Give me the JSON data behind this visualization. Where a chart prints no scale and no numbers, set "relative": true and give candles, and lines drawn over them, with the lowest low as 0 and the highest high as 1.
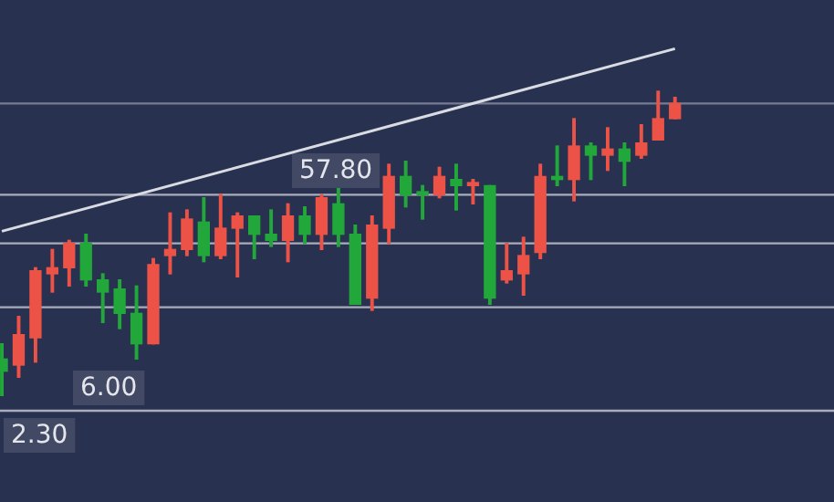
{
  "chart_data": {
    "type": "candlestick",
    "relative": true,
    "categories": [
      null,
      null,
      null,
      null,
      null,
      null,
      null,
      null,
      null,
      null,
      null,
      null,
      null,
      null,
      null,
      null,
      null,
      null,
      null,
      null,
      null,
      null,
      null,
      null,
      null,
      null,
      null,
      null,
      null,
      null,
      null,
      null,
      null,
      null,
      null,
      null,
      null,
      null,
      null,
      null,
      null
    ],
    "ohlc": [
      [
        0.12,
        0.17,
        0,
        0.08
      ],
      [
        0.1,
        0.26,
        0.06,
        0.2
      ],
      [
        0.19,
        0.42,
        0.11,
        0.41
      ],
      [
        0.4,
        0.48,
        0.34,
        0.42
      ],
      [
        0.42,
        0.51,
        0.36,
        0.5
      ],
      [
        0.5,
        0.53,
        0.36,
        0.38
      ],
      [
        0.38,
        0.4,
        0.24,
        0.34
      ],
      [
        0.35,
        0.38,
        0.22,
        0.27
      ],
      [
        0.27,
        0.36,
        0.12,
        0.17
      ],
      [
        0.17,
        0.45,
        0.17,
        0.43
      ],
      [
        0.46,
        0.6,
        0.4,
        0.48
      ],
      [
        0.48,
        0.61,
        0.46,
        0.58
      ],
      [
        0.57,
        0.65,
        0.44,
        0.46
      ],
      [
        0.46,
        0.66,
        0.45,
        0.55
      ],
      [
        0.55,
        0.6,
        0.39,
        0.59
      ],
      [
        0.59,
        0.59,
        0.45,
        0.53
      ],
      [
        0.53,
        0.61,
        0.49,
        0.51
      ],
      [
        0.51,
        0.63,
        0.44,
        0.59
      ],
      [
        0.59,
        0.62,
        0.5,
        0.53
      ],
      [
        0.53,
        0.66,
        0.48,
        0.65
      ],
      [
        0.63,
        0.68,
        0.49,
        0.53
      ],
      [
        0.53,
        0.56,
        0.3,
        0.3
      ],
      [
        0.32,
        0.59,
        0.28,
        0.56
      ],
      [
        0.55,
        0.76,
        0.5,
        0.72
      ],
      [
        0.72,
        0.77,
        0.62,
        0.66
      ],
      [
        0.67,
        0.69,
        0.58,
        0.66
      ],
      [
        0.66,
        0.75,
        0.65,
        0.72
      ],
      [
        0.71,
        0.76,
        0.61,
        0.69
      ],
      [
        0.69,
        0.71,
        0.63,
        0.7
      ],
      [
        0.69,
        0.69,
        0.3,
        0.32
      ],
      [
        0.38,
        0.5,
        0.37,
        0.41
      ],
      [
        0.4,
        0.52,
        0.33,
        0.46
      ],
      [
        0.47,
        0.76,
        0.45,
        0.72
      ],
      [
        0.72,
        0.82,
        0.69,
        0.71
      ],
      [
        0.71,
        0.91,
        0.64,
        0.82
      ],
      [
        0.82,
        0.83,
        0.71,
        0.79
      ],
      [
        0.79,
        0.88,
        0.74,
        0.81
      ],
      [
        0.81,
        0.83,
        0.69,
        0.77
      ],
      [
        0.79,
        0.89,
        0.78,
        0.83
      ],
      [
        0.84,
        1,
        0.84,
        0.91
      ],
      [
        0.91,
        0.98,
        0.91,
        0.96
      ]
    ],
    "colors": [
      "#22a83a",
      "#ec5346",
      "#ec5346",
      "#ec5346",
      "#ec5346",
      "#22a83a",
      "#22a83a",
      "#22a83a",
      "#22a83a",
      "#ec5346",
      "#ec5346",
      "#ec5346",
      "#22a83a",
      "#ec5346",
      "#ec5346",
      "#22a83a",
      "#22a83a",
      "#ec5346",
      "#22a83a",
      "#ec5346",
      "#22a83a",
      "#22a83a",
      "#ec5346",
      "#ec5346",
      "#22a83a",
      "#22a83a",
      "#ec5346",
      "#22a83a",
      "#ec5346",
      "#22a83a",
      "#ec5346",
      "#ec5346",
      "#ec5346",
      "#22a83a",
      "#ec5346",
      "#22a83a",
      "#ec5346",
      "#22a83a",
      "#ec5346",
      "#ec5346",
      "#ec5346"
    ],
    "series": [
      {
        "type": "line",
        "values": [
          0.54,
          null,
          null,
          null,
          null,
          null,
          null,
          null,
          null,
          null,
          null,
          null,
          null,
          null,
          null,
          null,
          null,
          null,
          null,
          null,
          null,
          null,
          null,
          null,
          null,
          null,
          null,
          null,
          null,
          null,
          null,
          null,
          null,
          null,
          null,
          null,
          null,
          null,
          null,
          null,
          1.14
        ],
        "color": "#d9dce3"
      }
    ],
    "annotations": [
      "57.80",
      "6.00",
      "2.30"
    ],
    "ref_lines": [
      {
        "axis": "y",
        "value": 0.66,
        "color": "#c9ccd4"
      },
      {
        "axis": "y",
        "value": 0.5,
        "color": "#c9ccd4"
      },
      {
        "axis": "y",
        "value": 0.29,
        "color": "#c9ccd4"
      },
      {
        "axis": "y",
        "value": -0.05,
        "color": "#c9ccd4"
      },
      {
        "axis": "y",
        "value": 0.96,
        "color": "#8a90a4"
      }
    ]
  }
}
